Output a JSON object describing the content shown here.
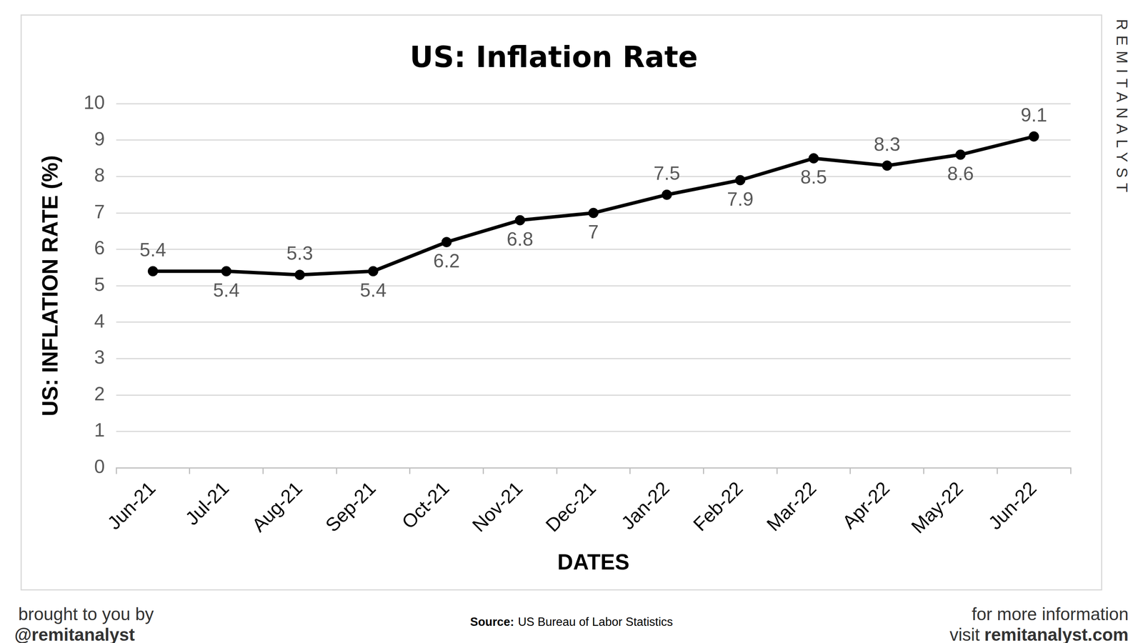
{
  "chart_data": {
    "type": "line",
    "title": "US: Inflation Rate",
    "x_label": "DATES",
    "y_label": "US: INFLATION RATE (%)",
    "categories": [
      "Jun-21",
      "Jul-21",
      "Aug-21",
      "Sep-21",
      "Oct-21",
      "Nov-21",
      "Dec-21",
      "Jan-22",
      "Feb-22",
      "Mar-22",
      "Apr-22",
      "May-22",
      "Jun-22"
    ],
    "values": [
      5.4,
      5.4,
      5.3,
      5.4,
      6.2,
      6.8,
      7,
      7.5,
      7.9,
      8.5,
      8.3,
      8.6,
      9.1
    ],
    "color": "#000000",
    "marker": "circle",
    "line_style": "solid",
    "ylim": [
      0,
      10
    ],
    "yticks": [
      0,
      1,
      2,
      3,
      4,
      5,
      6,
      7,
      8,
      9,
      10
    ],
    "grid": true,
    "data_labels": true
  },
  "branding": {
    "side_text": "REMITANALYST",
    "footer_left_line1": "brought to you by",
    "footer_left_line2": "@remitanalyst",
    "source_label": "Source:",
    "source_text": "US Bureau of Labor Statistics",
    "footer_right_line1": "for more information",
    "footer_right_prefix": "visit",
    "footer_right_link": "remitanalyst.com"
  }
}
